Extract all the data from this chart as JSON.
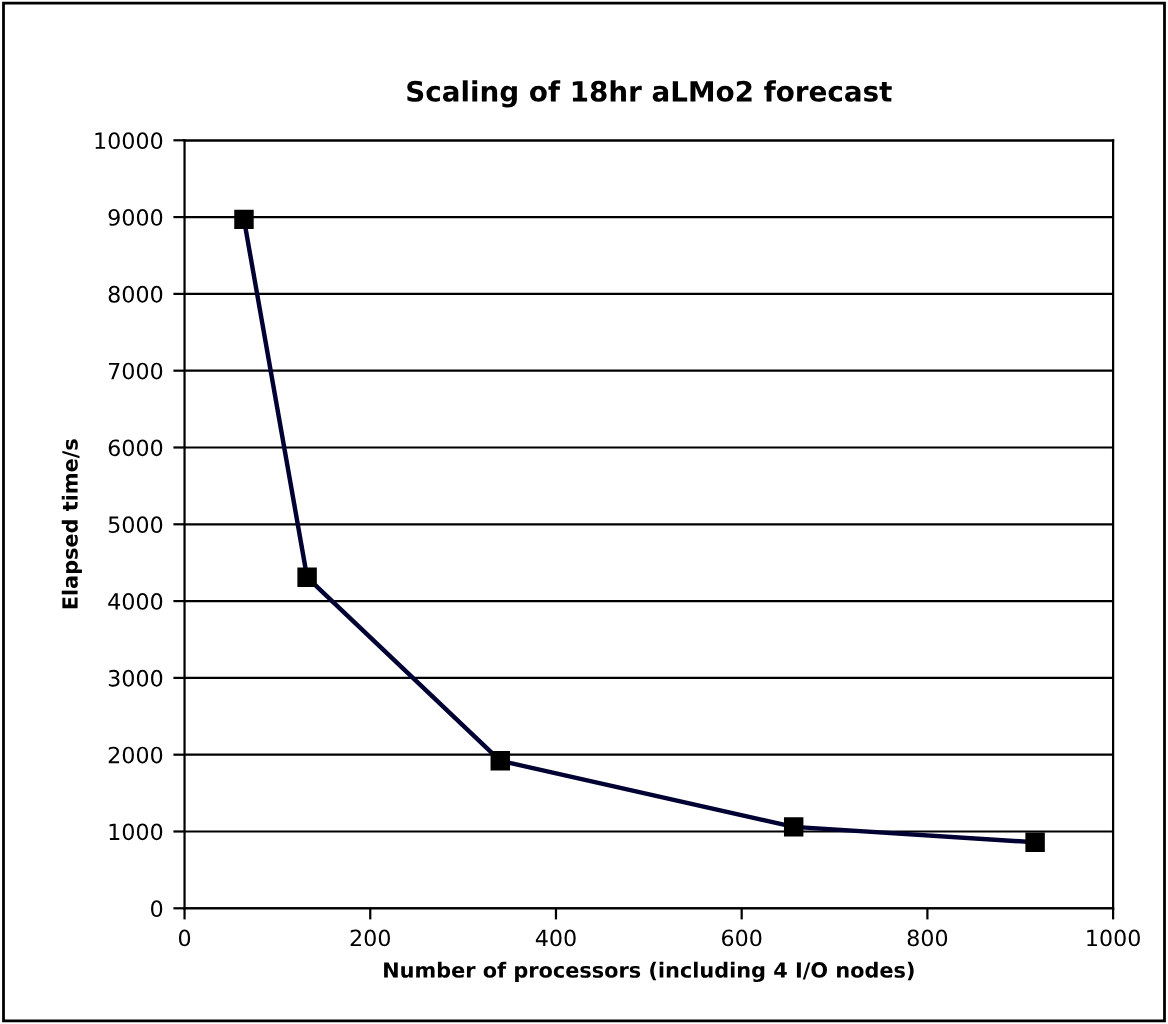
{
  "chart_data": {
    "type": "line",
    "title": "Scaling of 18hr aLMo2 forecast",
    "xlabel": "Number of processors (including 4 I/O nodes)",
    "ylabel": "Elapsed time/s",
    "x": [
      64,
      132,
      340,
      656,
      916
    ],
    "series": [
      {
        "color": "#000033",
        "values": [
          8970,
          4310,
          1920,
          1060,
          860
        ]
      }
    ],
    "xlim": [
      0,
      1000
    ],
    "xticks": [
      0,
      200,
      400,
      600,
      800,
      1000
    ],
    "ylim": [
      0,
      10000
    ],
    "yticks": [
      0,
      1000,
      2000,
      3000,
      4000,
      5000,
      6000,
      7000,
      8000,
      9000,
      10000
    ],
    "grid": "y",
    "marker": "square",
    "line_style": "solid"
  }
}
